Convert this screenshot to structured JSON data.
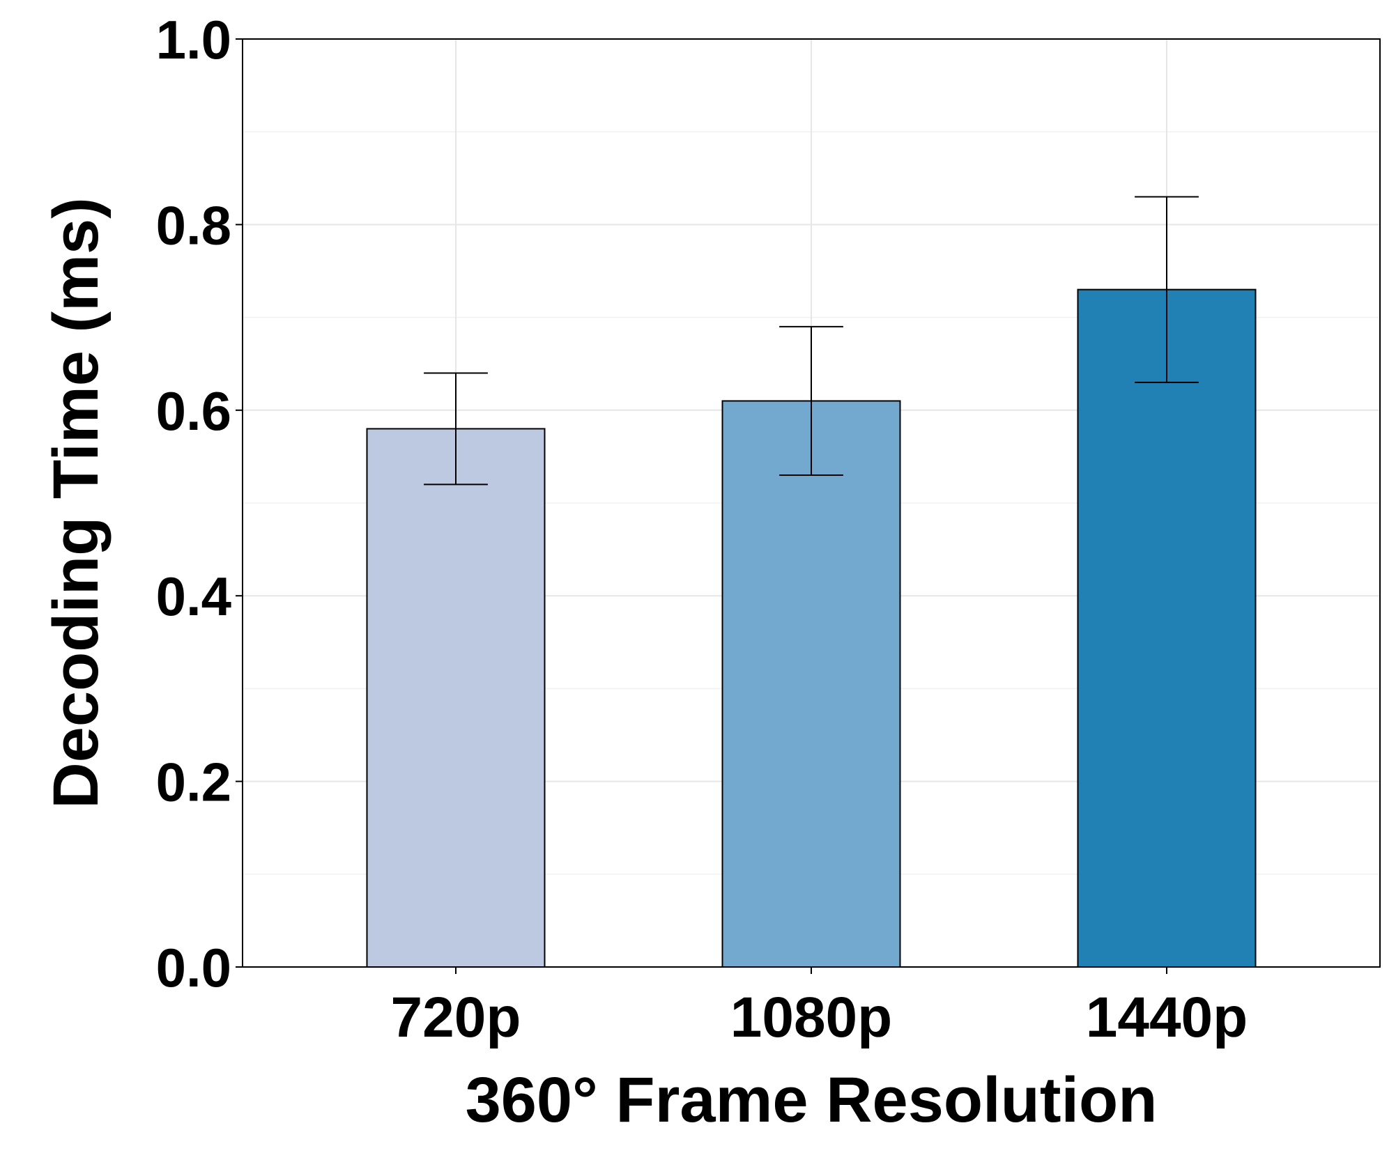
{
  "chart_data": {
    "type": "bar",
    "title": "",
    "xlabel": "360° Frame Resolution",
    "ylabel": "Decoding Time (ms)",
    "categories": [
      "720p",
      "1080p",
      "1440p"
    ],
    "values": [
      0.58,
      0.61,
      0.73
    ],
    "error_low": [
      0.52,
      0.53,
      0.63
    ],
    "error_high": [
      0.64,
      0.69,
      0.83
    ],
    "colors": [
      "#bcc9e1",
      "#74a9cf",
      "#2180b4"
    ],
    "ylim": [
      0.0,
      1.0
    ],
    "yticks": [
      "0.0",
      "0.2",
      "0.4",
      "0.6",
      "0.8",
      "1.0"
    ],
    "grid": true,
    "legend": "none"
  }
}
